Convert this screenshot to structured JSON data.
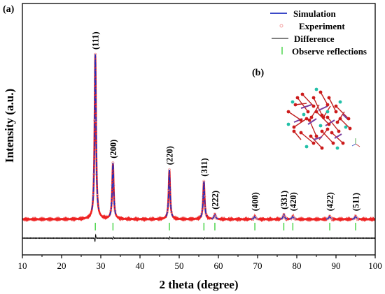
{
  "chart_data": {
    "type": "line",
    "panel_labels": [
      "(a)",
      "(b)"
    ],
    "xlabel": "2 theta (degree)",
    "ylabel": "Intensity (a.u.)",
    "xlim": [
      10,
      100
    ],
    "x_ticks": [
      10,
      20,
      30,
      40,
      50,
      60,
      70,
      80,
      90,
      100
    ],
    "y_ticks_shown": false,
    "grid": false,
    "legend": {
      "position": "top-right",
      "entries": [
        {
          "label": "Simulation",
          "color": "#1f2fbf",
          "style": "line"
        },
        {
          "label": "Experiment",
          "color": "#f4a0a0",
          "style": "circle"
        },
        {
          "label": "Difference",
          "color": "#000000",
          "style": "line"
        },
        {
          "label": "Observe reflections",
          "color": "#22cc22",
          "style": "tick"
        }
      ]
    },
    "peaks": [
      {
        "label": "(111)",
        "x": 28.6,
        "height": 100
      },
      {
        "label": "(200)",
        "x": 33.1,
        "height": 34
      },
      {
        "label": "(220)",
        "x": 47.5,
        "height": 30
      },
      {
        "label": "(311)",
        "x": 56.3,
        "height": 23
      },
      {
        "label": "(222)",
        "x": 59.1,
        "height": 3
      },
      {
        "label": "(400)",
        "x": 69.3,
        "height": 2
      },
      {
        "label": "(331)",
        "x": 76.7,
        "height": 3
      },
      {
        "label": "(420)",
        "x": 79.0,
        "height": 2
      },
      {
        "label": "(422)",
        "x": 88.4,
        "height": 2
      },
      {
        "label": "(511)",
        "x": 95.0,
        "height": 2
      }
    ],
    "reflections": [
      28.6,
      33.1,
      47.5,
      56.3,
      59.1,
      69.3,
      76.7,
      79.0,
      88.4,
      95.0
    ],
    "colors": {
      "simulation": "#1f2fbf",
      "experiment": "#ee2222",
      "difference": "#000000",
      "reflections": "#22cc22"
    }
  }
}
